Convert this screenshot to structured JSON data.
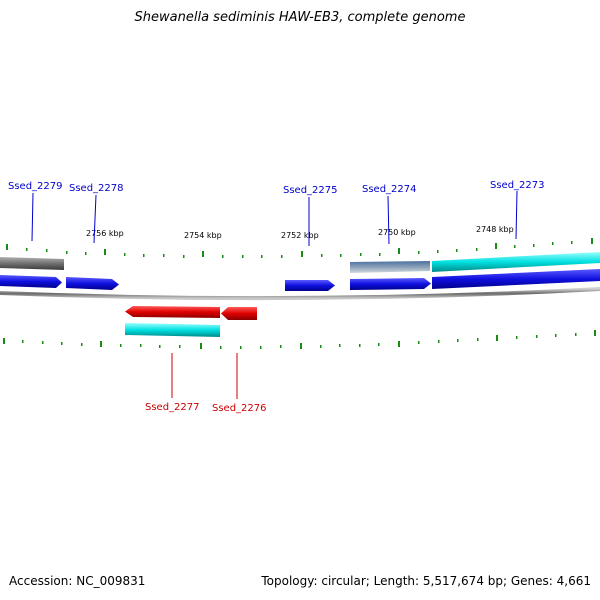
{
  "title": "Shewanella sediminis HAW-EB3, complete genome",
  "footer": {
    "accession": "Accession: NC_009831",
    "summary": "Topology: circular; Length: 5,517,674 bp; Genes: 4,661"
  },
  "colors": {
    "forward_cds": "#1010e0",
    "reverse_cds": "#e00000",
    "rna_cyan": "#00e0e0",
    "pseudo_gray": "#777777",
    "steel_blue": "#6a8fb8",
    "backbone": "#8a8a8a",
    "ticks": "#1a8a1a",
    "label_forward": "#0000cc",
    "label_reverse": "#cc0000"
  },
  "kbp_labels": [
    "2756 kbp",
    "2754 kbp",
    "2752 kbp",
    "2750 kbp",
    "2748 kbp"
  ],
  "gene_labels_top": [
    "Ssed_2279",
    "Ssed_2278",
    "Ssed_2275",
    "Ssed_2274",
    "Ssed_2273"
  ],
  "gene_labels_bottom": [
    "Ssed_2277",
    "Ssed_2276"
  ]
}
